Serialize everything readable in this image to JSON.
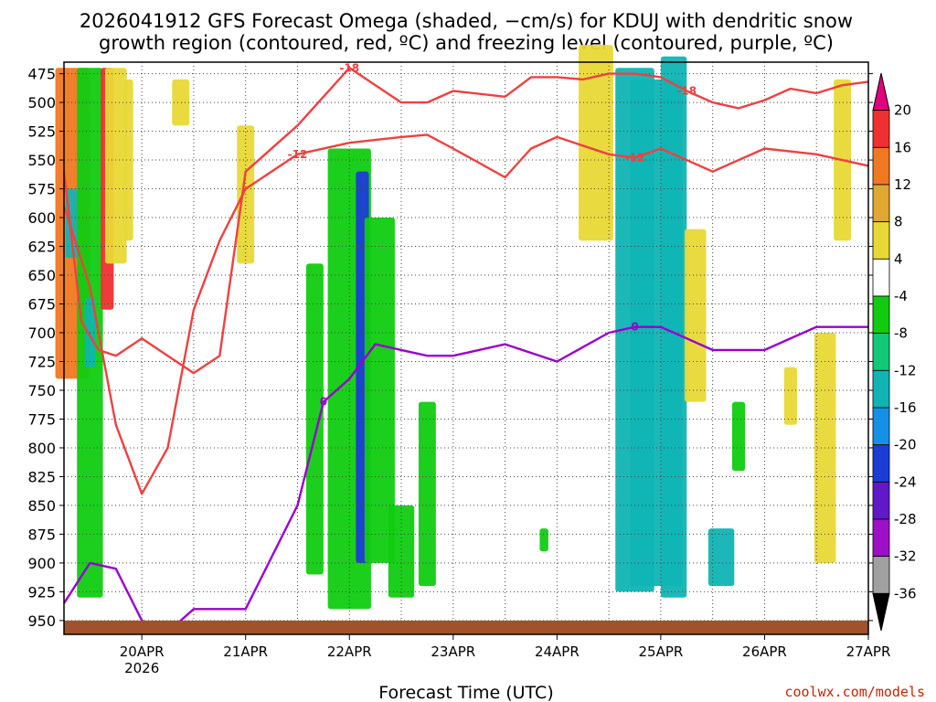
{
  "chart_data": {
    "type": "heatmap",
    "title_line1": "2026041912 GFS Forecast Omega (shaded, −cm/s) for KDUJ with dendritic snow",
    "title_line2": "growth region (contoured, red, ºC) and freezing level (contoured, purple, ºC)",
    "xlabel": "Forecast Time (UTC)",
    "credit": "coolwx.com/models",
    "x_ticks": [
      "20APR",
      "21APR",
      "22APR",
      "23APR",
      "24APR",
      "25APR",
      "26APR",
      "27APR"
    ],
    "x_tick_sub": "2026",
    "x_range_hours": [
      -18,
      168
    ],
    "y_ticks": [
      475,
      500,
      525,
      550,
      575,
      600,
      625,
      650,
      675,
      700,
      725,
      750,
      775,
      800,
      825,
      850,
      875,
      900,
      925,
      950
    ],
    "y_range_hpa": [
      465,
      962
    ],
    "colorbar": {
      "ticks": [
        "20",
        "16",
        "12",
        "8",
        "4",
        "-4",
        "-8",
        "-12",
        "-16",
        "-20",
        "-24",
        "-28",
        "-32",
        "-36"
      ],
      "colors": [
        "#e0007a",
        "#f03030",
        "#f07820",
        "#e0a830",
        "#e8d836",
        "#ffffff",
        "#10cc10",
        "#10c878",
        "#10b4b4",
        "#1490e6",
        "#1c3cd6",
        "#6018c8",
        "#9c10c8",
        "#a0a0a0",
        "#000000"
      ]
    },
    "contours": [
      {
        "label": "-18",
        "color": "#f04040",
        "hours": [
          -18,
          -14,
          -10,
          -6,
          0,
          6,
          12,
          18,
          24,
          36,
          48,
          60,
          66,
          72,
          84,
          90,
          96,
          102,
          108,
          114,
          120,
          126,
          132,
          138,
          144,
          150,
          156,
          162,
          168
        ],
        "pressure": [
          560,
          690,
          715,
          720,
          705,
          720,
          735,
          720,
          560,
          520,
          470,
          500,
          500,
          490,
          495,
          478,
          478,
          480,
          475,
          475,
          478,
          490,
          500,
          505,
          498,
          488,
          492,
          485,
          482
        ]
      },
      {
        "label": "-12",
        "color": "#f04040",
        "hours": [
          -18,
          -12,
          -6,
          0,
          6,
          12,
          18,
          24,
          36,
          48,
          60,
          66,
          72,
          84,
          90,
          96,
          108,
          114,
          120,
          132,
          144,
          156,
          168
        ],
        "pressure": [
          590,
          660,
          780,
          840,
          800,
          680,
          620,
          575,
          545,
          535,
          530,
          528,
          540,
          565,
          540,
          530,
          545,
          548,
          540,
          560,
          540,
          545,
          555
        ]
      },
      {
        "label": "0",
        "color": "#9a00d0",
        "hours": [
          -18,
          -12,
          -6,
          0,
          6,
          12,
          24,
          36,
          42,
          48,
          54,
          60,
          66,
          72,
          84,
          96,
          108,
          114,
          120,
          132,
          144,
          156,
          168
        ],
        "pressure": [
          935,
          900,
          905,
          950,
          960,
          940,
          940,
          850,
          760,
          740,
          710,
          715,
          720,
          720,
          710,
          725,
          700,
          695,
          695,
          715,
          715,
          695,
          695
        ]
      }
    ]
  }
}
